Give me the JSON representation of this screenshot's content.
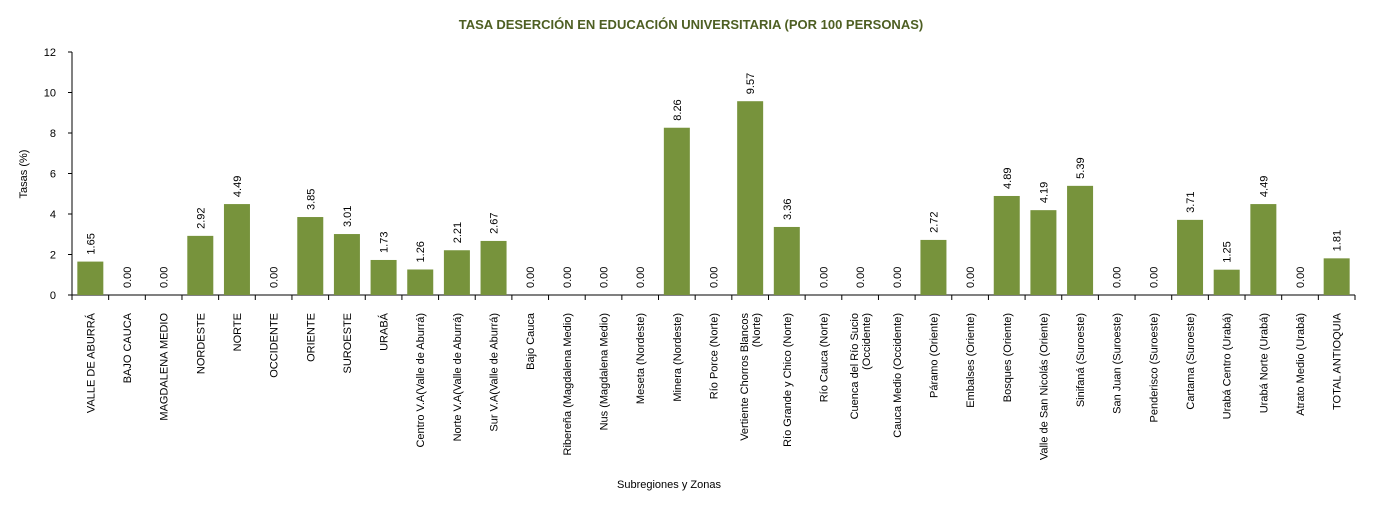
{
  "chart_data": {
    "type": "bar",
    "title": "TASA DESERCIÓN EN EDUCACIÓN UNIVERSITARIA (POR 100 PERSONAS)",
    "xlabel": "Subregiones y Zonas",
    "ylabel": "Tasas (%)",
    "ylim": [
      0,
      12
    ],
    "yticks": [
      0,
      2,
      4,
      6,
      8,
      10,
      12
    ],
    "grid": false,
    "legend": "none",
    "bar_color": "#77933c",
    "categories": [
      [
        "VALLE DE ABURRÁ"
      ],
      [
        "BAJO CAUCA"
      ],
      [
        "MAGDALENA MEDIO"
      ],
      [
        "NORDESTE"
      ],
      [
        "NORTE"
      ],
      [
        "OCCIDENTE"
      ],
      [
        "ORIENTE"
      ],
      [
        "SUROESTE"
      ],
      [
        "URABÁ"
      ],
      [
        "Centro V.A(Valle de Aburrá)"
      ],
      [
        "Norte V.A(Valle de Aburrá)"
      ],
      [
        "Sur V.A(Valle de Aburrá)"
      ],
      [
        "Bajo Cauca"
      ],
      [
        "Ribereña  (Magdalena Medio)"
      ],
      [
        "Nus  (Magdalena Medio)"
      ],
      [
        "Meseta  (Nordeste)"
      ],
      [
        "Minera  (Nordeste)"
      ],
      [
        "Río Porce   (Norte)"
      ],
      [
        "Vertiente Chorros Blancos",
        "(Norte)"
      ],
      [
        "Río Grande y Chico  (Norte)"
      ],
      [
        "Río Cauca  (Norte)"
      ],
      [
        "Cuenca del Río Sucio",
        "(Occidente)"
      ],
      [
        "Cauca Medio  (Occidente)"
      ],
      [
        "Páramo  (Oriente)"
      ],
      [
        "Embalses  (Oriente)"
      ],
      [
        "Bosques  (Oriente)"
      ],
      [
        "Valle de San Nicolás (Oriente)"
      ],
      [
        "Sinifaná  (Suroeste)"
      ],
      [
        "San Juan  (Suroeste)"
      ],
      [
        "Penderisco (Suroeste)"
      ],
      [
        "Cartama  (Suroeste)"
      ],
      [
        "Urabá Centro  (Urabá)"
      ],
      [
        "Urabá Norte  (Urabá)"
      ],
      [
        "Atrato Medio  (Urabá)"
      ],
      [
        "TOTAL ANTIOQUIA"
      ]
    ],
    "values": [
      1.65,
      0.0,
      0.0,
      2.92,
      4.49,
      0.0,
      3.85,
      3.01,
      1.73,
      1.26,
      2.21,
      2.67,
      0.0,
      0.0,
      0.0,
      0.0,
      8.26,
      0.0,
      9.57,
      3.36,
      0.0,
      0.0,
      0.0,
      2.72,
      0.0,
      4.89,
      4.19,
      5.39,
      0.0,
      0.0,
      3.71,
      1.25,
      4.49,
      0.0,
      1.81
    ],
    "value_labels": [
      "1.65",
      "0.00",
      "0.00",
      "2.92",
      "4.49",
      "0.00",
      "3.85",
      "3.01",
      "1.73",
      "1.26",
      "2.21",
      "2.67",
      "0.00",
      "0.00",
      "0.00",
      "0.00",
      "8.26",
      "0.00",
      "9.57",
      "3.36",
      "0.00",
      "0.00",
      "0.00",
      "2.72",
      "0.00",
      "4.89",
      "4.19",
      "5.39",
      "0.00",
      "0.00",
      "3.71",
      "1.25",
      "4.49",
      "0.00",
      "1.81"
    ]
  }
}
